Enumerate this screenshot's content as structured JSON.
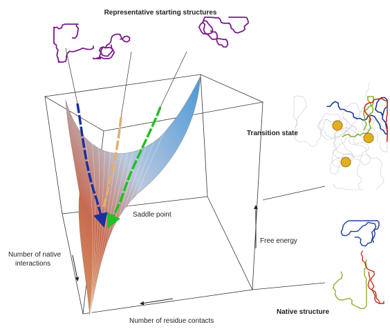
{
  "title": "Representative starting structures",
  "labels": {
    "transition_state": "Transition state",
    "saddle_point": "Saddle point",
    "free_energy": "Free energy",
    "native_interactions": [
      "Number of native",
      "interactions"
    ],
    "native_structure": "Native structure",
    "residue_contacts": "Number of residue contacts"
  }
}
